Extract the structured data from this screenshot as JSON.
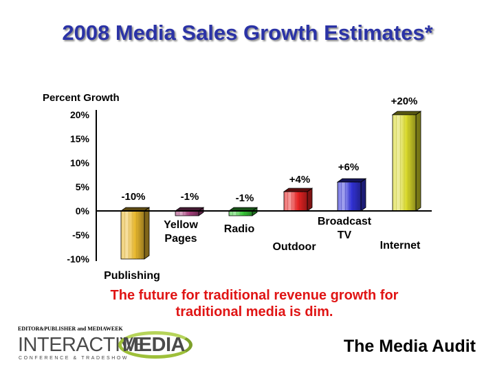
{
  "title": "2008 Media Sales Growth Estimates*",
  "tagline": [
    "The future for traditional revenue growth for",
    "traditional media is dim."
  ],
  "logo": {
    "publishers": "EDITOR&PUBLISHER and MEDIAWEEK",
    "word1": "INTERACTIVE",
    "word2": "MEDIA",
    "subtitle": "CONFERENCE & TRADESHOW"
  },
  "brand": "The Media Audit",
  "chart_data": {
    "type": "bar",
    "title": "",
    "ylabel": "Percent Growth",
    "ylim": [
      -10,
      20
    ],
    "yticks": [
      "-10%",
      "-5%",
      "0%",
      "5%",
      "10%",
      "15%",
      "20%"
    ],
    "grid": false,
    "categories": [
      {
        "name": "Publishing",
        "lines": [
          "Publishing"
        ]
      },
      {
        "name": "Yellow Pages",
        "lines": [
          "Yellow",
          "Pages"
        ]
      },
      {
        "name": "Radio",
        "lines": [
          "Radio"
        ]
      },
      {
        "name": "Outdoor",
        "lines": [
          "Outdoor"
        ]
      },
      {
        "name": "Broadcast TV",
        "lines": [
          "Broadcast",
          "TV"
        ]
      },
      {
        "name": "Internet",
        "lines": [
          "Internet"
        ]
      }
    ],
    "values": [
      -10,
      -1,
      -1,
      4,
      6,
      20
    ],
    "value_labels": [
      "-10%",
      "-1%",
      "-1%",
      "+4%",
      "+6%",
      "+20%"
    ],
    "colors": [
      "#e8b82e",
      "#a8417e",
      "#3ac83a",
      "#e62424",
      "#3232d6",
      "#d8d82a"
    ]
  }
}
